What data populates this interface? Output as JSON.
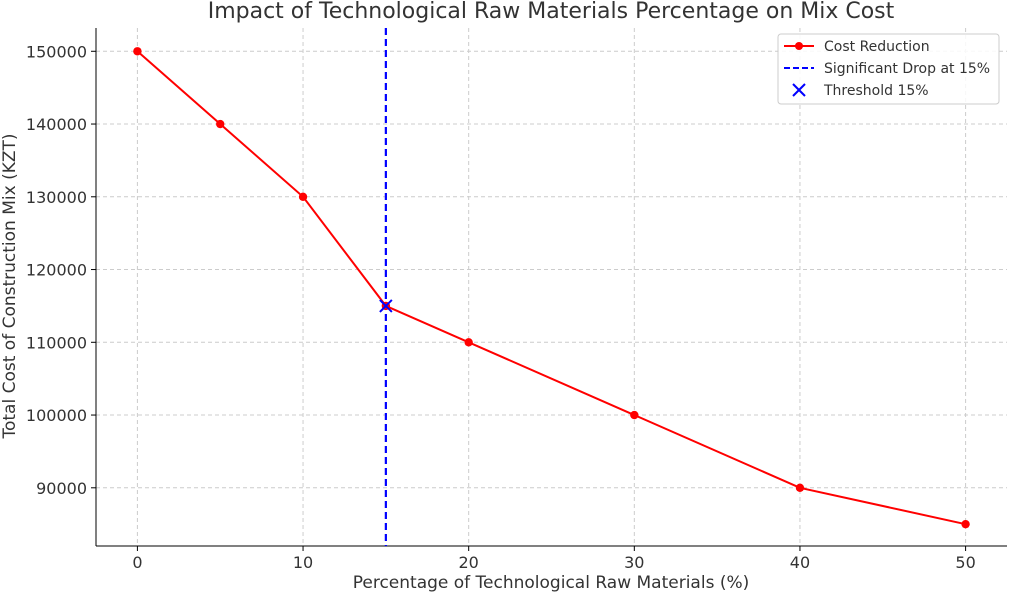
{
  "chart_data": {
    "type": "line",
    "title": "Impact of Technological Raw Materials Percentage on Mix Cost",
    "xlabel": "Percentage of Technological Raw Materials (%)",
    "ylabel": "Total Cost of Construction Mix (KZT)",
    "xlim": [
      -2.5,
      52.5
    ],
    "ylim": [
      82000,
      153200
    ],
    "xticks": [
      0,
      10,
      20,
      30,
      40,
      50
    ],
    "yticks": [
      90000,
      100000,
      110000,
      120000,
      130000,
      140000,
      150000
    ],
    "grid": true,
    "legend_position": "top-right",
    "series": [
      {
        "name": "Cost Reduction",
        "color": "#ff0000",
        "marker": "circle",
        "x": [
          0,
          5,
          10,
          15,
          20,
          30,
          40,
          50
        ],
        "y": [
          150000,
          140000,
          130000,
          115000,
          110000,
          100000,
          90000,
          85000
        ]
      }
    ],
    "vertical_line": {
      "name": "Significant Drop at 15%",
      "x": 15,
      "color": "#0000ff",
      "style": "dashed"
    },
    "highlight_point": {
      "name": "Threshold 15%",
      "x": 15,
      "y": 115000,
      "color": "#0000ff",
      "marker": "x"
    }
  }
}
